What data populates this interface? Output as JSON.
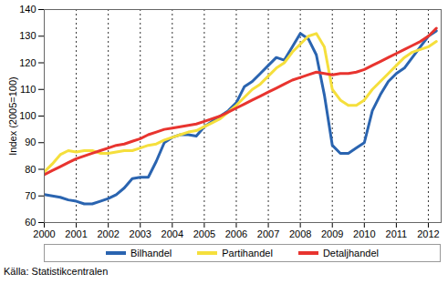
{
  "chart_data": {
    "type": "line",
    "y_label": "Index (2005=100)",
    "caption": "Källa: Statistikcentralen",
    "x": [
      2000,
      2000.25,
      2000.5,
      2000.75,
      2001,
      2001.25,
      2001.5,
      2001.75,
      2002,
      2002.25,
      2002.5,
      2002.75,
      2003,
      2003.25,
      2003.5,
      2003.75,
      2004,
      2004.25,
      2004.5,
      2004.75,
      2005,
      2005.25,
      2005.5,
      2005.75,
      2006,
      2006.25,
      2006.5,
      2006.75,
      2007,
      2007.25,
      2007.5,
      2007.75,
      2008,
      2008.25,
      2008.5,
      2008.75,
      2009,
      2009.25,
      2009.5,
      2009.75,
      2010,
      2010.25,
      2010.5,
      2010.75,
      2011,
      2011.25,
      2011.5,
      2011.75,
      2012,
      2012.25
    ],
    "series": [
      {
        "name": "Bilhandel",
        "color": "#2a64b0",
        "values": [
          70.5,
          70,
          69.5,
          68.5,
          68,
          67,
          67,
          68,
          69,
          70.5,
          73,
          76.5,
          77,
          77,
          83,
          90,
          92,
          93,
          93,
          92.5,
          96,
          98,
          100,
          102,
          105,
          111,
          113,
          116,
          119,
          122,
          121,
          126,
          131,
          129,
          123,
          108,
          89,
          86,
          86,
          88,
          90,
          102,
          108,
          113,
          116,
          118,
          122,
          126,
          130,
          132
        ]
      },
      {
        "name": "Partihandel",
        "color": "#f5df3c",
        "values": [
          79,
          82,
          85.5,
          87,
          86.5,
          87,
          87,
          86,
          86,
          86.5,
          87,
          87,
          88,
          89,
          89.5,
          91,
          92,
          93,
          94,
          94.5,
          96,
          97.5,
          99,
          101.5,
          104,
          107,
          110,
          112,
          115,
          118,
          120,
          124,
          127,
          130,
          131,
          126,
          110,
          106,
          104,
          104,
          106,
          110,
          113,
          116,
          119,
          122,
          124,
          125,
          126,
          128
        ]
      },
      {
        "name": "Detaljhandel",
        "color": "#e8342f",
        "values": [
          78,
          79.5,
          81,
          82.5,
          84,
          85,
          86,
          87,
          88,
          89,
          89.5,
          90.5,
          91.5,
          93,
          94,
          95,
          95.5,
          96,
          96.5,
          97,
          98,
          99,
          100,
          101.5,
          103,
          104.5,
          106,
          107.5,
          109,
          110.5,
          112,
          113.5,
          114.5,
          115.5,
          116.5,
          116,
          115.5,
          116,
          116,
          116.5,
          117.5,
          119,
          120.5,
          122,
          123.5,
          125,
          126.5,
          128,
          130,
          133
        ]
      }
    ],
    "xlim": [
      2000,
      2012.4
    ],
    "xticks": [
      2000,
      2001,
      2002,
      2003,
      2004,
      2005,
      2006,
      2007,
      2008,
      2009,
      2010,
      2011,
      2012
    ],
    "ylim": [
      60,
      140
    ],
    "yticks": [
      60,
      70,
      80,
      90,
      100,
      110,
      120,
      130,
      140
    ],
    "grid": true,
    "legend": "bottom"
  }
}
